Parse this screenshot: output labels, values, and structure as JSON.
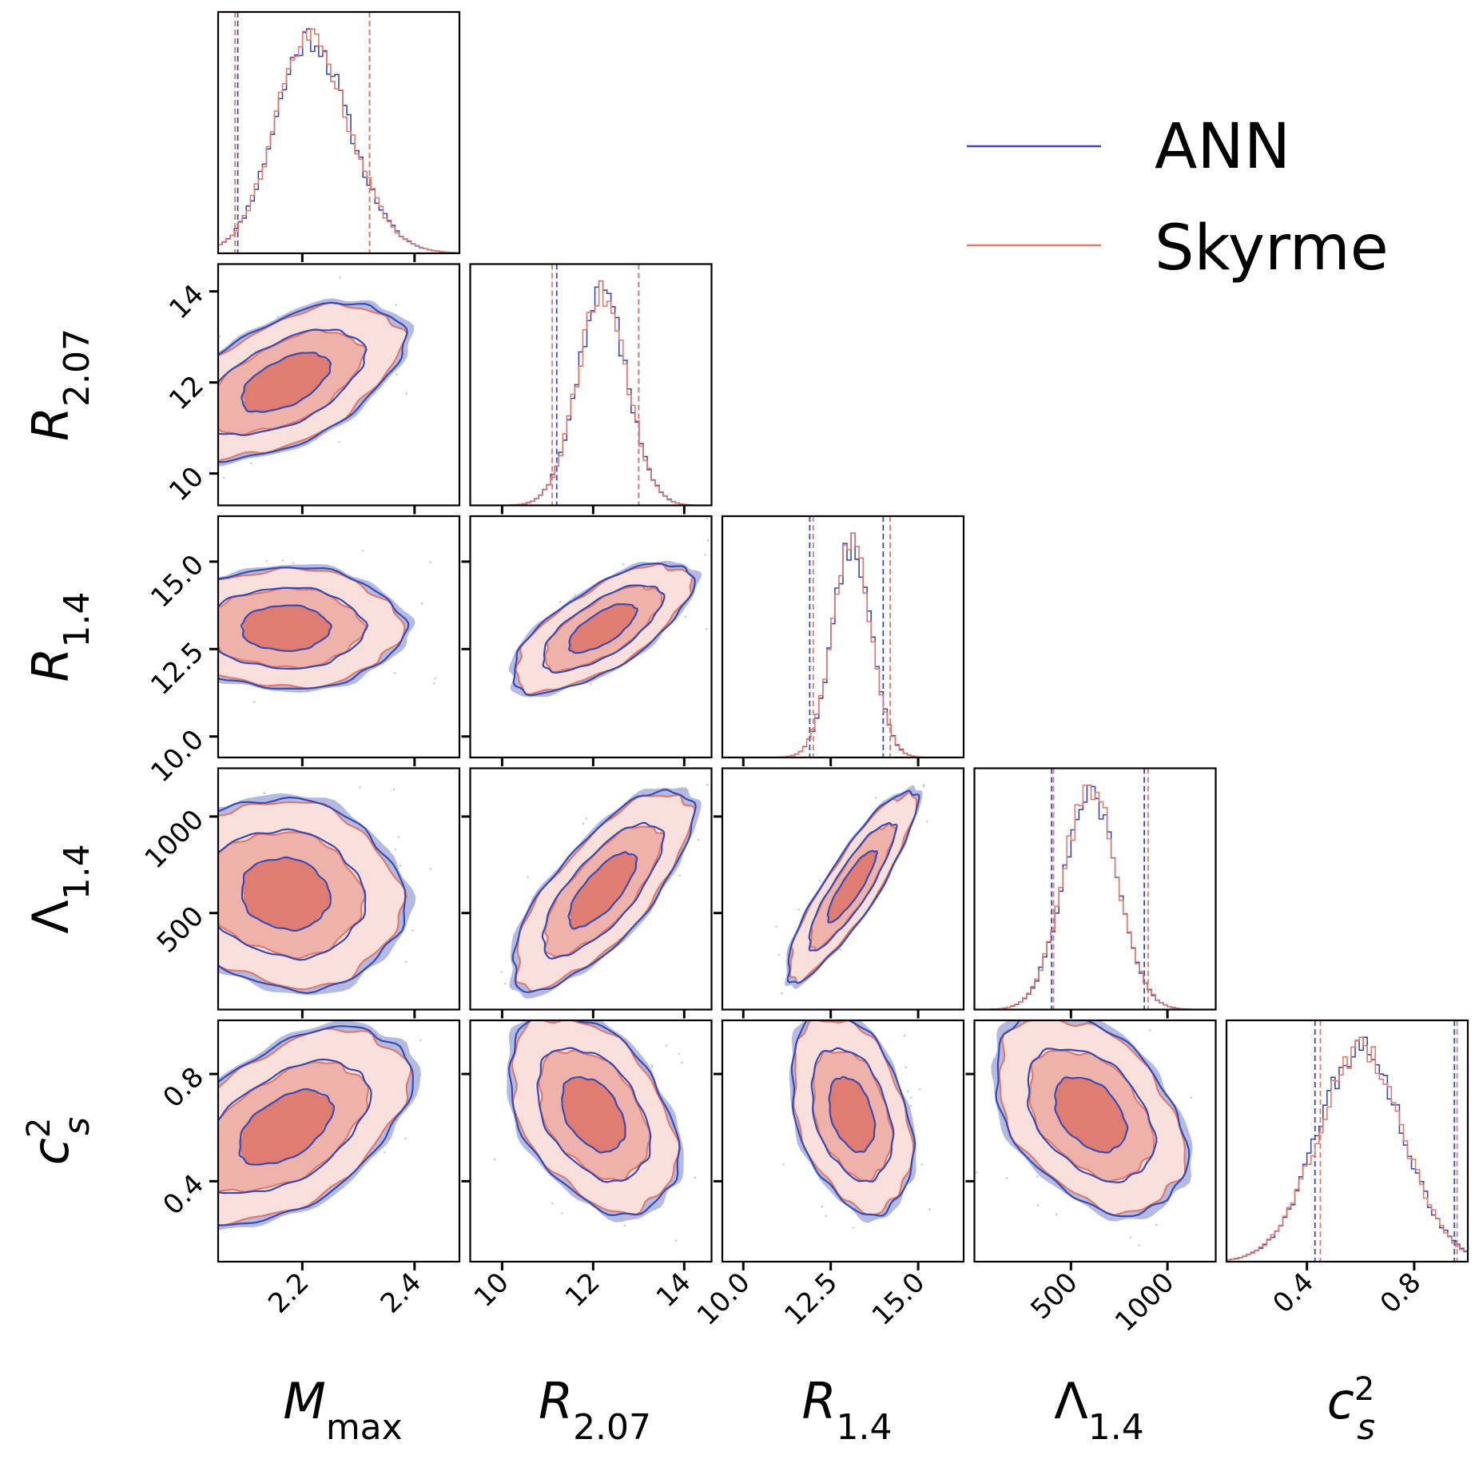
{
  "chart_data": {
    "type": "corner",
    "title": "",
    "series": [
      {
        "name": "ANN",
        "color": "#3b4ab0",
        "fill": "#b3bbe3"
      },
      {
        "name": "Skyrme",
        "color": "#e07a6e",
        "fill": "#f6d5d1"
      }
    ],
    "legend": {
      "position": "top-right",
      "entries": [
        "ANN",
        "Skyrme"
      ]
    },
    "parameters": [
      {
        "key": "Mmax",
        "symbol": "M",
        "sub": "max",
        "sup": "",
        "italic": true,
        "range": [
          2.05,
          2.48
        ],
        "ticks": [
          2.2,
          2.4
        ],
        "tick_labels": [
          "2.2",
          "2.4"
        ]
      },
      {
        "key": "R207",
        "symbol": "R",
        "sub": "2.07",
        "sup": "",
        "italic": true,
        "range": [
          9.3,
          14.6
        ],
        "ticks": [
          10,
          12,
          14
        ],
        "tick_labels": [
          "10",
          "12",
          "14"
        ]
      },
      {
        "key": "R14",
        "symbol": "R",
        "sub": "1.4",
        "sup": "",
        "italic": true,
        "range": [
          9.4,
          16.3
        ],
        "ticks": [
          10.0,
          12.5,
          15.0
        ],
        "tick_labels": [
          "10.0",
          "12.5",
          "15.0"
        ]
      },
      {
        "key": "L14",
        "symbol": "Λ",
        "sub": "1.4",
        "sup": "",
        "italic": false,
        "range": [
          0,
          1250
        ],
        "ticks": [
          500,
          1000
        ],
        "tick_labels": [
          "500",
          "1000"
        ]
      },
      {
        "key": "cs2",
        "symbol": "c",
        "sub": "s",
        "sup": "2",
        "italic": true,
        "range": [
          0.1,
          1.0
        ],
        "ticks": [
          0.4,
          0.8
        ],
        "tick_labels": [
          "0.4",
          "0.8"
        ]
      }
    ],
    "marginals": [
      {
        "param": "Mmax",
        "mean": 2.17,
        "sd": 0.085,
        "skew": 1.2,
        "quantiles": {
          "ANN": [
            2.085,
            2.32
          ],
          "Skyrme": [
            2.08,
            2.32
          ]
        }
      },
      {
        "param": "R207",
        "mean": 12.2,
        "sd": 0.55,
        "quantiles": {
          "ANN": [
            11.2,
            13.0
          ],
          "Skyrme": [
            11.1,
            13.0
          ]
        }
      },
      {
        "param": "R14",
        "mean": 13.1,
        "sd": 0.55,
        "quantiles": {
          "ANN": [
            11.9,
            14.0
          ],
          "Skyrme": [
            12.0,
            14.2
          ]
        }
      },
      {
        "param": "L14",
        "mean": 600,
        "sd": 140,
        "quantiles": {
          "ANN": [
            400,
            880
          ],
          "Skyrme": [
            410,
            900
          ]
        }
      },
      {
        "param": "cs2",
        "mean": 0.6,
        "sd": 0.16,
        "quantiles": {
          "ANN": [
            0.43,
            0.95
          ],
          "Skyrme": [
            0.45,
            0.96
          ]
        }
      }
    ],
    "joint": [
      {
        "x": "Mmax",
        "y": "R207",
        "cx": 2.17,
        "cy": 12.0,
        "sx": 0.085,
        "sy": 0.7,
        "rho": 0.55
      },
      {
        "x": "Mmax",
        "y": "R14",
        "cx": 2.17,
        "cy": 13.1,
        "sx": 0.085,
        "sy": 0.7,
        "rho": 0.0
      },
      {
        "x": "R207",
        "y": "R14",
        "cx": 12.2,
        "cy": 13.1,
        "sx": 0.8,
        "sy": 0.75,
        "rho": 0.7
      },
      {
        "x": "Mmax",
        "y": "L14",
        "cx": 2.17,
        "cy": 600,
        "sx": 0.085,
        "sy": 200,
        "rho": -0.1
      },
      {
        "x": "R207",
        "y": "L14",
        "cx": 12.2,
        "cy": 620,
        "sx": 0.8,
        "sy": 210,
        "rho": 0.75
      },
      {
        "x": "R14",
        "y": "L14",
        "cx": 13.1,
        "cy": 640,
        "sx": 0.75,
        "sy": 200,
        "rho": 0.88
      },
      {
        "x": "Mmax",
        "y": "cs2",
        "cx": 2.17,
        "cy": 0.6,
        "sx": 0.09,
        "sy": 0.15,
        "rho": 0.5
      },
      {
        "x": "R207",
        "y": "cs2",
        "cx": 12.0,
        "cy": 0.65,
        "sx": 0.75,
        "sy": 0.15,
        "rho": -0.4
      },
      {
        "x": "R14",
        "y": "cs2",
        "cx": 13.1,
        "cy": 0.65,
        "sx": 0.7,
        "sy": 0.15,
        "rho": -0.35
      },
      {
        "x": "L14",
        "y": "cs2",
        "cx": 600,
        "cy": 0.65,
        "sx": 200,
        "sy": 0.15,
        "rho": -0.4
      }
    ],
    "contour_levels_sigma": [
      0.9,
      1.6,
      2.4
    ]
  }
}
